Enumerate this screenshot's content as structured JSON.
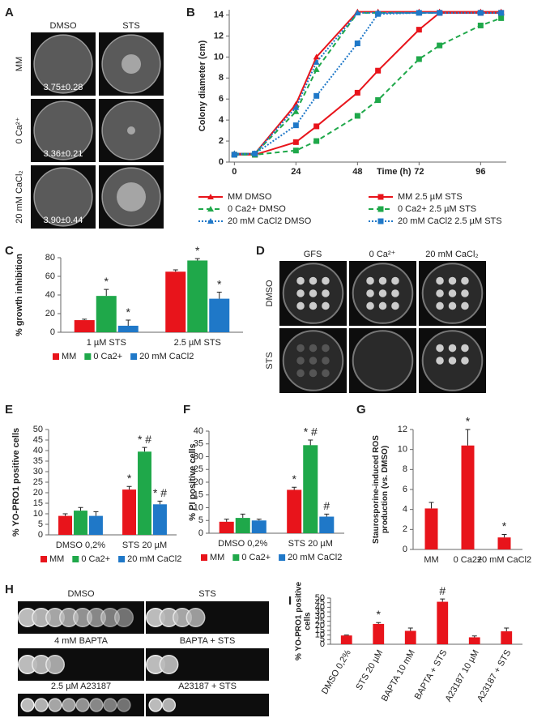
{
  "panel_labels": [
    "A",
    "B",
    "C",
    "D",
    "E",
    "F",
    "G",
    "H",
    "I"
  ],
  "panel_a": {
    "columns": [
      "DMSO",
      "STS"
    ],
    "rows": [
      "MM",
      "0 Ca²⁺",
      "20 mM CaCl₂"
    ],
    "diameters": [
      "3.75±0.28",
      "3.36±0.21",
      "3.90±0.44"
    ]
  },
  "panel_d": {
    "columns": [
      "GFS",
      "0 Ca²⁺",
      "20 mM CaCl₂"
    ],
    "rows": [
      "DMSO",
      "STS"
    ]
  },
  "panel_h": {
    "labels": [
      "DMSO",
      "STS",
      "4 mM BAPTA",
      "BAPTA + STS",
      "2.5 µM A23187",
      "A23187 + STS"
    ]
  },
  "chart_data": [
    {
      "type": "line",
      "x_label": "Time (h)",
      "y_label": "Colony diameter (cm)",
      "x": [
        0,
        8,
        24,
        32,
        48,
        56,
        72,
        80,
        96,
        104
      ],
      "xlim": [
        -2,
        106
      ],
      "xticks": [
        0,
        24,
        48,
        72,
        96
      ],
      "ylim": [
        0,
        14.5
      ],
      "yticks": [
        0,
        2,
        4,
        6,
        8,
        10,
        12,
        14
      ],
      "legend": "bottom",
      "series": [
        {
          "name": "MM DMSO",
          "color": "#e8141b",
          "marker": "triangle",
          "line_style": "solid",
          "values": [
            0.8,
            0.8,
            5.5,
            10.0,
            14.3,
            14.3,
            14.3,
            14.3,
            14.3,
            14.3
          ]
        },
        {
          "name": "0 Ca2+ DMSO",
          "color": "#1fa84a",
          "marker": "triangle",
          "line_style": "dashed",
          "values": [
            0.8,
            0.8,
            4.8,
            8.8,
            14.2,
            14.2,
            14.2,
            14.2,
            14.2,
            14.2
          ]
        },
        {
          "name": "20 mM CaCl2 DMSO",
          "color": "#1f78c8",
          "marker": "triangle",
          "line_style": "dotted",
          "values": [
            0.8,
            0.8,
            5.2,
            9.5,
            14.2,
            14.2,
            14.2,
            14.2,
            14.2,
            14.2
          ]
        },
        {
          "name": "MM 2.5 µM STS",
          "color": "#e8141b",
          "marker": "square",
          "line_style": "solid",
          "values": [
            0.7,
            0.7,
            1.9,
            3.4,
            6.6,
            8.7,
            12.6,
            14.2,
            14.2,
            14.2
          ]
        },
        {
          "name": "0 Ca2+ 2.5 µM STS",
          "color": "#1fa84a",
          "marker": "square",
          "line_style": "dashed",
          "values": [
            0.7,
            0.7,
            1.1,
            2.0,
            4.4,
            5.9,
            9.8,
            11.1,
            13.0,
            13.7
          ]
        },
        {
          "name": "20 mM CaCl2 2.5 µM STS",
          "color": "#1f78c8",
          "marker": "square",
          "line_style": "dotted",
          "values": [
            0.7,
            0.8,
            3.5,
            6.3,
            11.3,
            14.1,
            14.2,
            14.2,
            14.2,
            14.2
          ]
        }
      ]
    },
    {
      "type": "bar",
      "y_label": "% growth inhibition",
      "categories": [
        "1 µM STS",
        "2.5 µM STS"
      ],
      "ylim": [
        0,
        80
      ],
      "yticks": [
        0,
        20,
        40,
        60,
        80
      ],
      "legend": "bottom",
      "series": [
        {
          "name": "MM",
          "color": "#e8141b",
          "values": [
            13,
            65
          ],
          "errors": [
            1,
            2
          ],
          "annotations": [
            null,
            null
          ]
        },
        {
          "name": "0 Ca2+",
          "color": "#1fa84a",
          "values": [
            39,
            77
          ],
          "errors": [
            7,
            2
          ],
          "annotations": [
            "*",
            "*"
          ]
        },
        {
          "name": "20 mM CaCl2",
          "color": "#1f78c8",
          "values": [
            7,
            36
          ],
          "errors": [
            6,
            7
          ],
          "annotations": [
            "*",
            "*"
          ]
        }
      ]
    },
    {
      "type": "bar",
      "y_label": "% YO-PRO1 positive cells",
      "categories": [
        "DMSO 0,2%",
        "STS 20 µM"
      ],
      "ylim": [
        0,
        50
      ],
      "yticks": [
        0,
        5,
        10,
        15,
        20,
        25,
        30,
        35,
        40,
        45,
        50
      ],
      "legend": "bottom",
      "series": [
        {
          "name": "MM",
          "color": "#e8141b",
          "values": [
            9,
            21.5
          ],
          "errors": [
            1,
            1.5
          ],
          "annotations": [
            null,
            "*"
          ]
        },
        {
          "name": "0 Ca2+",
          "color": "#1fa84a",
          "values": [
            11.5,
            39.5
          ],
          "errors": [
            1.5,
            2
          ],
          "annotations": [
            null,
            "* #"
          ]
        },
        {
          "name": "20 mM CaCl2",
          "color": "#1f78c8",
          "values": [
            9,
            14.5
          ],
          "errors": [
            2,
            1.5
          ],
          "annotations": [
            null,
            "* #"
          ]
        }
      ]
    },
    {
      "type": "bar",
      "y_label": "% PI positive cells",
      "categories": [
        "DMSO 0,2%",
        "STS 20 µM"
      ],
      "ylim": [
        0,
        40
      ],
      "yticks": [
        0,
        5,
        10,
        15,
        20,
        25,
        30,
        35,
        40
      ],
      "legend": "bottom",
      "series": [
        {
          "name": "MM",
          "color": "#e8141b",
          "values": [
            4.5,
            17
          ],
          "errors": [
            1,
            1
          ],
          "annotations": [
            null,
            "*"
          ]
        },
        {
          "name": "0 Ca2+",
          "color": "#1fa84a",
          "values": [
            6,
            34.5
          ],
          "errors": [
            1.5,
            2
          ],
          "annotations": [
            null,
            "* #"
          ]
        },
        {
          "name": "20 mM CaCl2",
          "color": "#1f78c8",
          "values": [
            5,
            6.5
          ],
          "errors": [
            0.5,
            1
          ],
          "annotations": [
            null,
            "#"
          ]
        }
      ]
    },
    {
      "type": "bar",
      "y_label": "Staurosporine-induced ROS production (vs. DMSO)",
      "categories": [
        "MM",
        "0 Ca2+",
        "20 mM CaCl2"
      ],
      "ylim": [
        0,
        12
      ],
      "yticks": [
        0,
        2,
        4,
        6,
        8,
        10,
        12
      ],
      "color": "#e8141b",
      "values": [
        4.1,
        10.4,
        1.2
      ],
      "errors": [
        0.6,
        1.6,
        0.3
      ],
      "annotations": [
        null,
        "*",
        "*"
      ]
    },
    {
      "type": "bar",
      "y_label": "% YO-PRO1 positive cells",
      "categories": [
        "DMSO 0,2%",
        "STS 20 µM",
        "BAPTA 10 mM",
        "BAPTA + STS",
        "A23187 10 µM",
        "A23187 + STS"
      ],
      "ylim": [
        0,
        50
      ],
      "yticks": [
        0,
        5,
        10,
        15,
        20,
        25,
        30,
        35,
        40,
        45,
        50
      ],
      "color": "#e8141b",
      "values": [
        9.5,
        22,
        14.5,
        46,
        7.5,
        14
      ],
      "errors": [
        0.5,
        1.5,
        3,
        3,
        1.5,
        3.5
      ],
      "annotations": [
        null,
        "*",
        null,
        "#",
        null,
        null
      ]
    }
  ]
}
